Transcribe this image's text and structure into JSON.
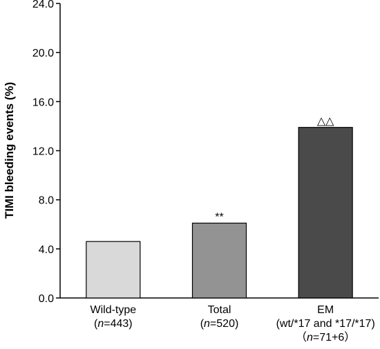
{
  "chart_data": {
    "type": "bar",
    "title": "",
    "ylabel": "TIMI bleeding events (%)",
    "xlabel": "",
    "ylim": [
      0,
      24
    ],
    "yticks": [
      "0.0",
      "4.0",
      "8.0",
      "12.0",
      "16.0",
      "20.0",
      "24.0"
    ],
    "grid": false,
    "categories": [
      {
        "line1": "Wild-type",
        "line2": "(n=443)",
        "line3": ""
      },
      {
        "line1": "Total",
        "line2": "(n=520)",
        "line3": ""
      },
      {
        "line1": "EM",
        "line2": "(wt/*17 and *17/*17)",
        "line3": "（n=71+6）"
      }
    ],
    "values": [
      4.6,
      6.1,
      13.9
    ],
    "bar_colors": [
      "#d9d9d9",
      "#939393",
      "#4a4a4a"
    ],
    "annotations": [
      "",
      "**",
      "△△"
    ]
  }
}
